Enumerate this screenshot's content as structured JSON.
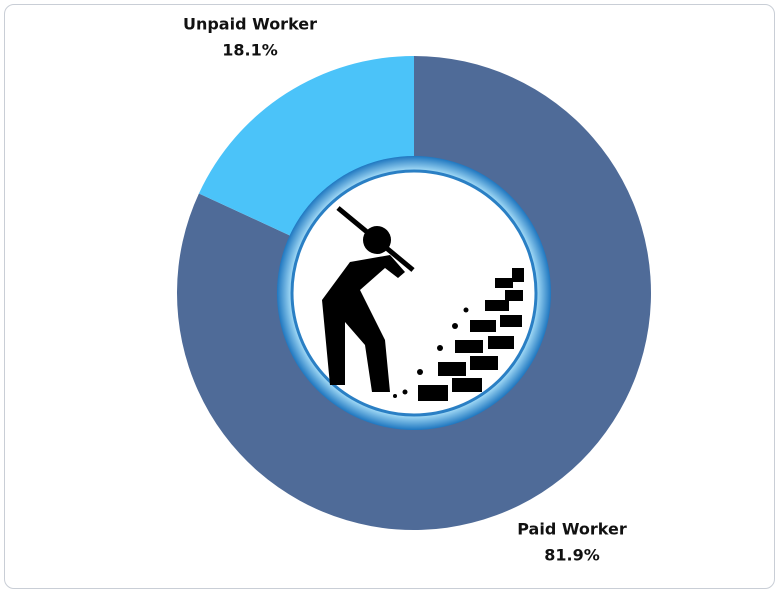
{
  "chart_data": {
    "type": "pie",
    "donut": true,
    "categories": [
      "Paid Worker",
      "Unpaid Worker"
    ],
    "values": [
      81.9,
      18.1
    ],
    "value_labels": [
      "81.9%",
      "18.1%"
    ],
    "colors": [
      "#4f6b98",
      "#4bc3f9"
    ]
  }
}
